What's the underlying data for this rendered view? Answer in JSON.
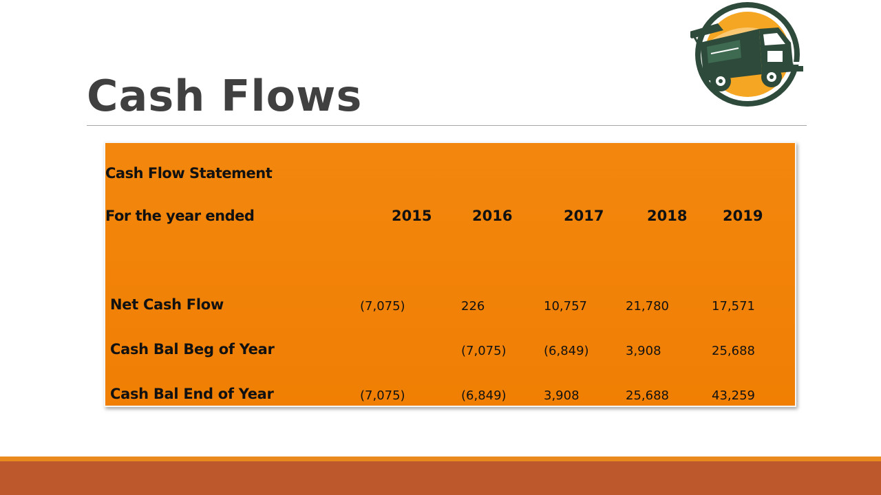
{
  "slide": {
    "title": "Cash Flows"
  },
  "logo": {
    "icon": "food-truck-icon",
    "colors": {
      "ring": "#2d4a3a",
      "fill": "#f5a623"
    }
  },
  "table": {
    "heading": "Cash Flow Statement",
    "period_label": "For the year ended",
    "years": [
      "2015",
      "2016",
      "2017",
      "2018",
      "2019"
    ],
    "rows": [
      {
        "label": "Net Cash Flow",
        "values": [
          "(7,075)",
          "226",
          "10,757",
          "21,780",
          "17,571"
        ]
      },
      {
        "label": "Cash Bal Beg of Year",
        "values": [
          "",
          "(7,075)",
          "(6,849)",
          "3,908",
          "25,688"
        ]
      },
      {
        "label": "Cash Bal End of Year",
        "values": [
          "(7,075)",
          "(6,849)",
          "3,908",
          "25,688",
          "43,259"
        ]
      }
    ]
  },
  "colors": {
    "panel": "#f2840a",
    "title": "#404040",
    "accent_bar": "#bd582c",
    "accent_line": "#e88a1e"
  }
}
